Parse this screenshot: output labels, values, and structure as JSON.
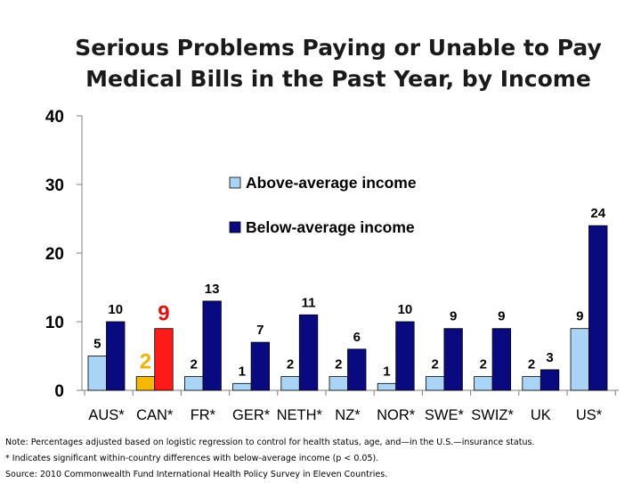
{
  "title_lines": [
    "Serious Problems Paying or Unable to Pay",
    "Medical Bills in the Past Year, by Income"
  ],
  "notes": [
    "Note: Percentages adjusted based on logistic regression to control for health status, age, and—in the U.S.—insurance status.",
    "* Indicates significant within-country differences with below-average income (p < 0.05).",
    "Source: 2010 Commonwealth Fund International Health Policy Survey in Eleven Countries."
  ],
  "chart_data": {
    "type": "bar",
    "title": "Serious Problems Paying or Unable to Pay Medical Bills in the Past Year, by Income",
    "categories": [
      "AUS*",
      "CAN*",
      "FR*",
      "GER*",
      "NETH*",
      "NZ*",
      "NOR*",
      "SWE*",
      "SWIZ*",
      "UK",
      "US*"
    ],
    "series": [
      {
        "name": "Above-average income",
        "color": "#a9d4f5",
        "values": [
          5,
          2,
          2,
          1,
          2,
          2,
          1,
          2,
          2,
          2,
          9
        ]
      },
      {
        "name": "Below-average income",
        "color": "#0a0a80",
        "values": [
          10,
          9,
          13,
          7,
          11,
          6,
          10,
          9,
          9,
          3,
          24
        ]
      }
    ],
    "highlight": {
      "category": "CAN*",
      "above_color": "#f6b800",
      "below_color": "#ff1a1a",
      "label_colors": [
        "#f0b400",
        "#e01010"
      ]
    },
    "yticks": [
      0,
      10,
      20,
      30,
      40
    ],
    "ylim": [
      0,
      40
    ],
    "legend_position": "upper-center",
    "grid": false
  }
}
